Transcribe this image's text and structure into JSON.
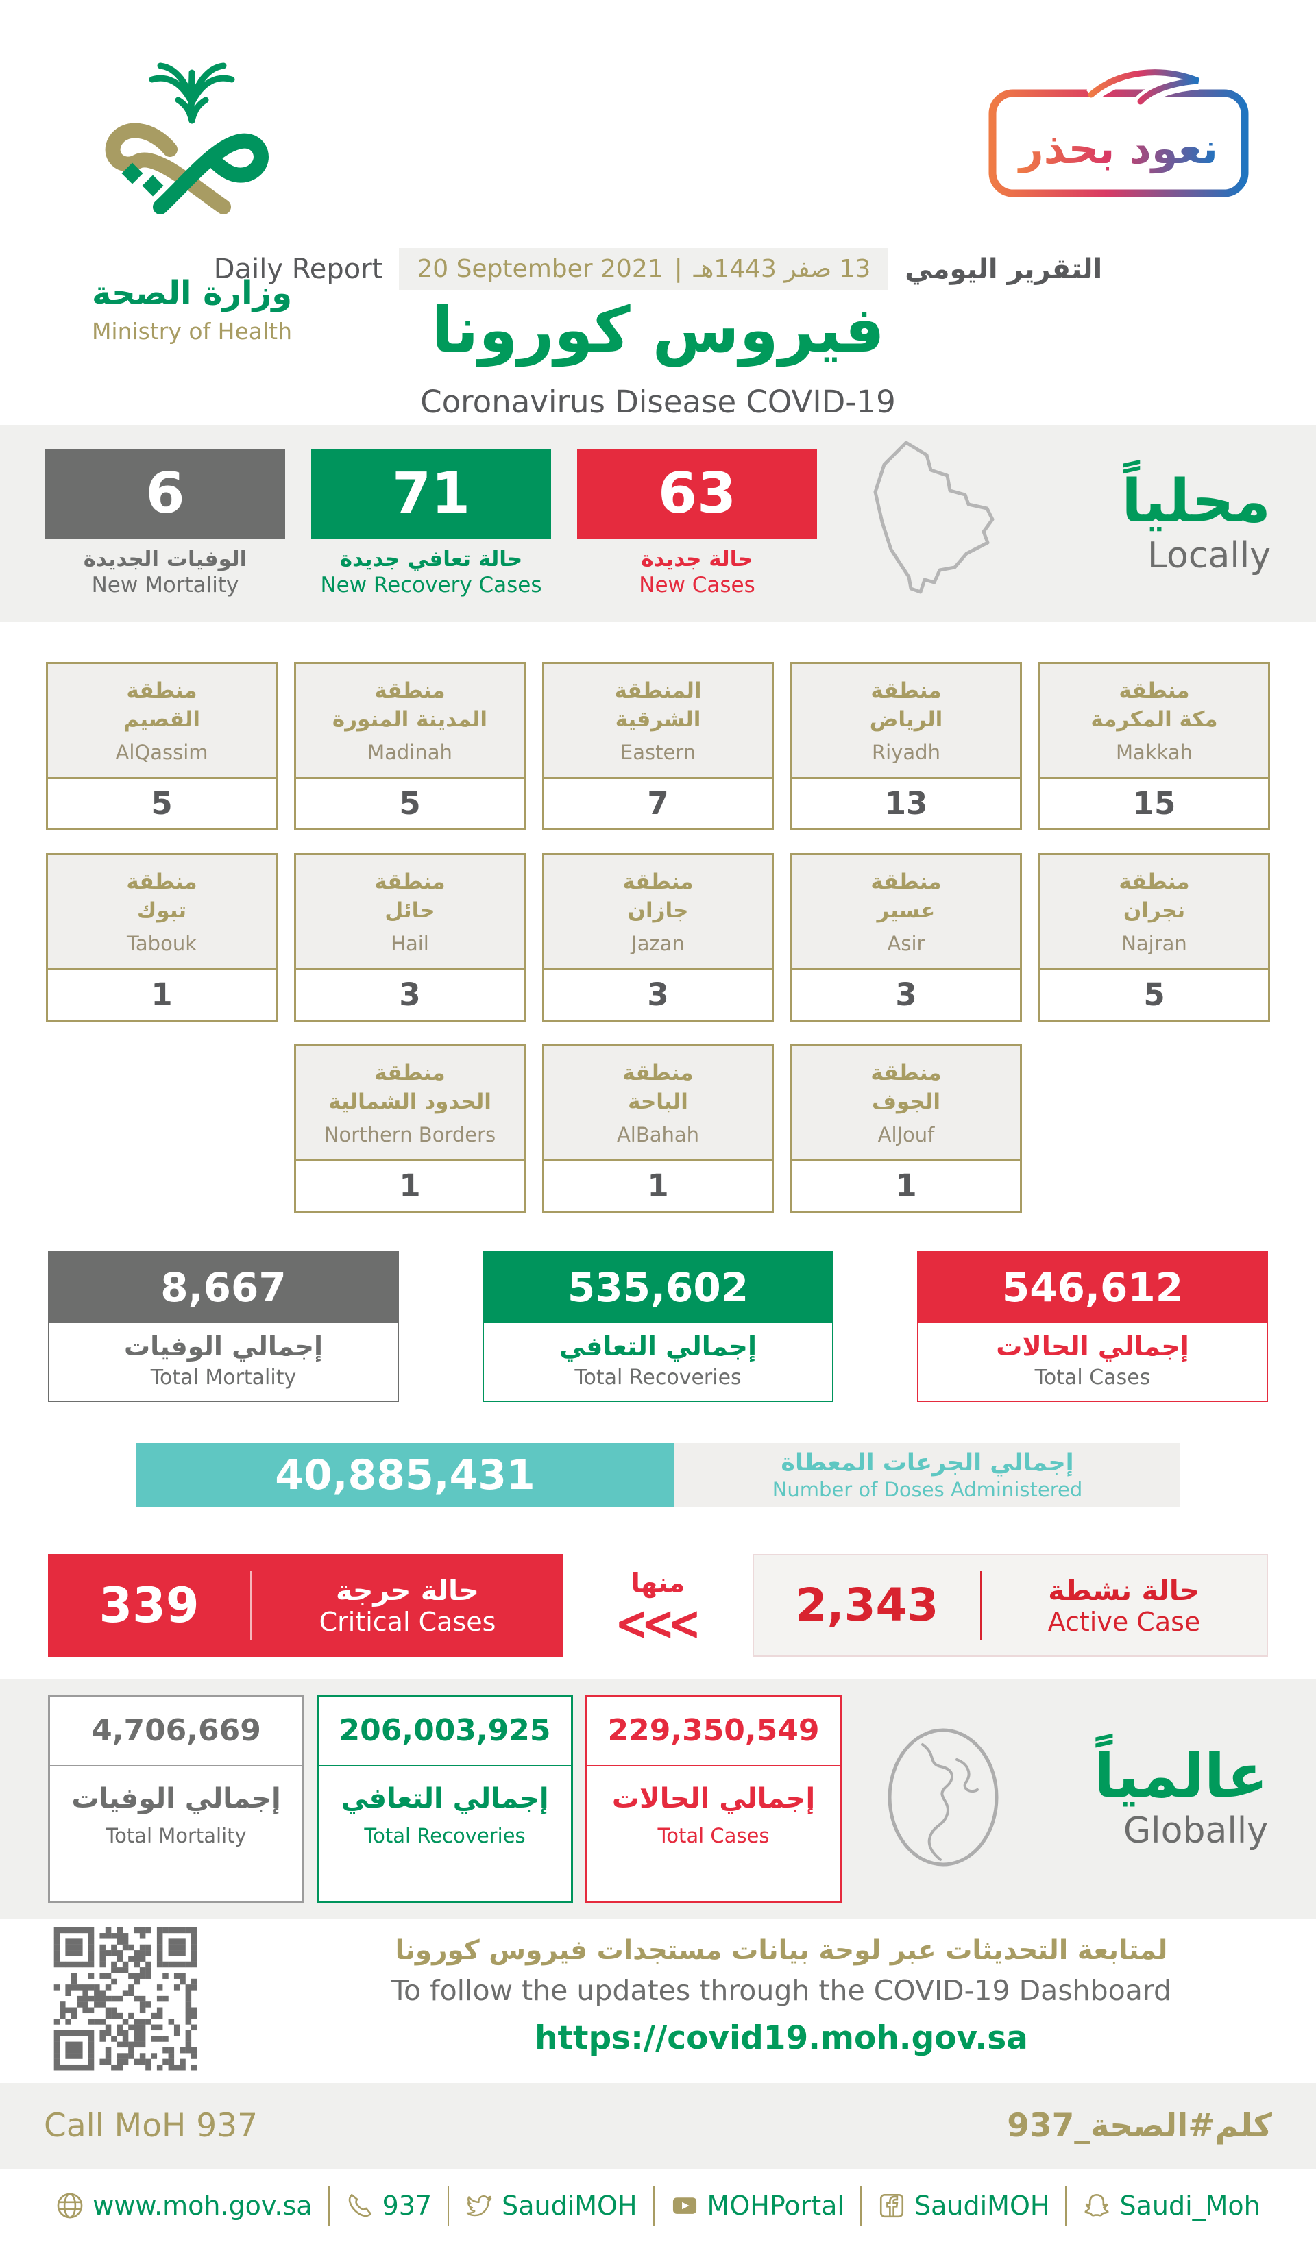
{
  "colors": {
    "green": "#00945c",
    "red": "#e52b3e",
    "gray": "#6d6e6d",
    "gold": "#a89c63",
    "teal": "#5fc7c2"
  },
  "header": {
    "logo_ar": "وزارة الصحة",
    "logo_en": "Ministry of Health",
    "badge_text": "نعود بحذر",
    "daily_report_en": "Daily Report",
    "date_hijri": "13 صفر 1443هـ",
    "date_separator": "|",
    "date_gregorian": "20 September 2021",
    "daily_report_ar": "التقرير اليومي",
    "title_ar": "فيروس كورونا",
    "title_en": "Coronavirus Disease COVID-19"
  },
  "locally": {
    "label_ar": "محلياً",
    "label_en": "Locally",
    "new_mortality": {
      "value": "6",
      "ar": "الوفيات الجديدة",
      "en": "New Mortality"
    },
    "new_recoveries": {
      "value": "71",
      "ar": "حالة تعافي جديدة",
      "en": "New Recovery Cases"
    },
    "new_cases": {
      "value": "63",
      "ar": "حالة جديدة",
      "en": "New Cases"
    }
  },
  "regions": {
    "rows": [
      [
        {
          "ar1": "منطقة",
          "ar2": "القصيم",
          "en": "AlQassim",
          "value": "5"
        },
        {
          "ar1": "منطقة",
          "ar2": "المدينة المنورة",
          "en": "Madinah",
          "value": "5"
        },
        {
          "ar1": "المنطقة",
          "ar2": "الشرقية",
          "en": "Eastern",
          "value": "7"
        },
        {
          "ar1": "منطقة",
          "ar2": "الرياض",
          "en": "Riyadh",
          "value": "13"
        },
        {
          "ar1": "منطقة",
          "ar2": "مكة المكرمة",
          "en": "Makkah",
          "value": "15"
        }
      ],
      [
        {
          "ar1": "منطقة",
          "ar2": "تبوك",
          "en": "Tabouk",
          "value": "1"
        },
        {
          "ar1": "منطقة",
          "ar2": "حائل",
          "en": "Hail",
          "value": "3"
        },
        {
          "ar1": "منطقة",
          "ar2": "جازان",
          "en": "Jazan",
          "value": "3"
        },
        {
          "ar1": "منطقة",
          "ar2": "عسير",
          "en": "Asir",
          "value": "3"
        },
        {
          "ar1": "منطقة",
          "ar2": "نجران",
          "en": "Najran",
          "value": "5"
        }
      ],
      [
        {
          "ar1": "منطقة",
          "ar2": "الحدود الشمالية",
          "en": "Northern Borders",
          "value": "1"
        },
        {
          "ar1": "منطقة",
          "ar2": "الباحة",
          "en": "AlBahah",
          "value": "1"
        },
        {
          "ar1": "منطقة",
          "ar2": "الجوف",
          "en": "AlJouf",
          "value": "1"
        }
      ]
    ]
  },
  "totals": {
    "mortality": {
      "value": "8,667",
      "ar": "إجمالي الوفيات",
      "en": "Total Mortality"
    },
    "recoveries": {
      "value": "535,602",
      "ar": "إجمالي التعافي",
      "en": "Total Recoveries"
    },
    "cases": {
      "value": "546,612",
      "ar": "إجمالي الحالات",
      "en": "Total Cases"
    }
  },
  "doses": {
    "value": "40,885,431",
    "ar": "إجمالي الجرعات المعطاة",
    "en": "Number of Doses Administered"
  },
  "critical": {
    "value": "339",
    "ar": "حالة حرجة",
    "en": "Critical Cases"
  },
  "of_which": {
    "ar": "منها",
    "chevrons": "<<<"
  },
  "active": {
    "value": "2,343",
    "ar": "حالة نشطة",
    "en": "Active Case"
  },
  "globally": {
    "label_ar": "عالمياً",
    "label_en": "Globally",
    "mortality": {
      "value": "4,706,669",
      "ar": "إجمالي الوفيات",
      "en": "Total Mortality"
    },
    "recoveries": {
      "value": "206,003,925",
      "ar": "إجمالي التعافي",
      "en": "Total Recoveries"
    },
    "cases": {
      "value": "229,350,549",
      "ar": "إجمالي الحالات",
      "en": "Total Cases"
    }
  },
  "dashboard": {
    "ar": "لمتابعة التحديثات عبر لوحة بيانات مستجدات فيروس كورونا",
    "en": "To follow the updates through the COVID-19 Dashboard",
    "url": "https://covid19.moh.gov.sa"
  },
  "footer": {
    "call_en": "Call MoH 937",
    "call_ar": "كلم#الصحة_937",
    "social": [
      {
        "icon": "globe-icon",
        "label": "www.moh.gov.sa"
      },
      {
        "icon": "phone-icon",
        "label": "937"
      },
      {
        "icon": "twitter-icon",
        "label": "SaudiMOH"
      },
      {
        "icon": "youtube-icon",
        "label": "MOHPortal"
      },
      {
        "icon": "facebook-icon",
        "label": "SaudiMOH"
      },
      {
        "icon": "snapchat-icon",
        "label": "Saudi_Moh"
      }
    ]
  }
}
